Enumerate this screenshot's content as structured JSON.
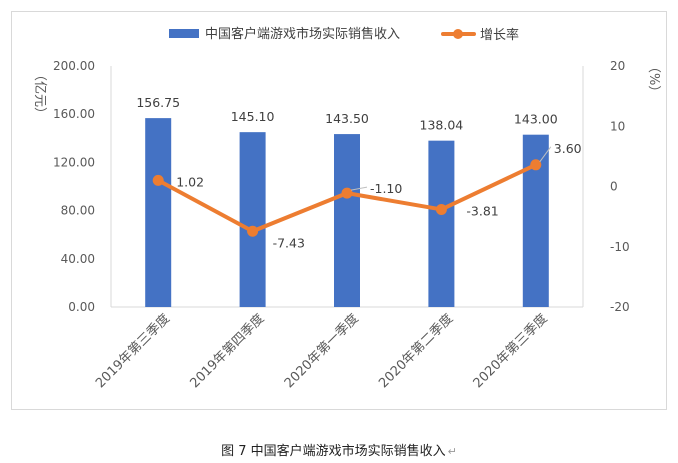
{
  "chart_data": {
    "type": "bar",
    "categories": [
      "2019年第三季度",
      "2019年第四季度",
      "2020年第一季度",
      "2020年第二季度",
      "2020年第三季度"
    ],
    "series": [
      {
        "name": "中国客户端游戏市场实际销售收入",
        "type": "bar",
        "axis": "left",
        "color": "#4472C4",
        "values": [
          156.75,
          145.1,
          143.5,
          138.04,
          143.0
        ]
      },
      {
        "name": "增长率",
        "type": "line",
        "axis": "right",
        "color": "#ED7D31",
        "values": [
          1.02,
          -7.43,
          -1.1,
          -3.81,
          3.6
        ]
      }
    ],
    "y_left": {
      "label": "（亿元）",
      "min": 0,
      "max": 200,
      "ticks": [
        "0.00",
        "40.00",
        "80.00",
        "120.00",
        "160.00",
        "200.00"
      ]
    },
    "y_right": {
      "label": "（%）",
      "min": -20,
      "max": 20,
      "ticks": [
        "-20",
        "-10",
        "0",
        "10",
        "20"
      ]
    },
    "legend_position": "top",
    "grid": false,
    "bar_labels": [
      "156.75",
      "145.10",
      "143.50",
      "138.04",
      "143.00"
    ],
    "line_labels": [
      "1.02",
      "-7.43",
      "-1.10",
      "-3.81",
      "3.60"
    ]
  },
  "caption": "图 7  中国客户端游戏市场实际销售收入",
  "caption_mark": "↵"
}
